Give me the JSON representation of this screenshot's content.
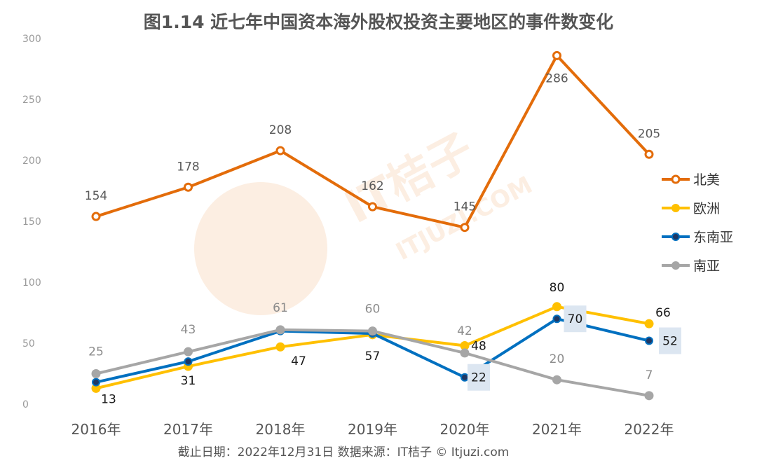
{
  "chart_data": {
    "type": "line",
    "title": "图1.14 近七年中国资本海外股权投资主要地区的事件数变化",
    "categories": [
      "2016年",
      "2017年",
      "2018年",
      "2019年",
      "2020年",
      "2021年",
      "2022年"
    ],
    "ylim": [
      0,
      300
    ],
    "yticks": [
      0,
      50,
      100,
      150,
      200,
      250,
      300
    ],
    "grid": false,
    "legend_position": "right",
    "series": [
      {
        "name": "北美",
        "color": "#E36C0A",
        "values": [
          154,
          178,
          208,
          162,
          145,
          286,
          205
        ],
        "labels_shown": true
      },
      {
        "name": "欧洲",
        "color": "#FFC000",
        "values": [
          13,
          31,
          47,
          57,
          48,
          80,
          66
        ],
        "labels_shown": true
      },
      {
        "name": "东南亚",
        "color": "#0070C0",
        "values": [
          18,
          35,
          60,
          58,
          22,
          70,
          52
        ],
        "labels_shown": [
          false,
          false,
          false,
          false,
          true,
          true,
          true
        ]
      },
      {
        "name": "南亚",
        "color": "#A6A6A6",
        "values": [
          25,
          43,
          61,
          60,
          42,
          20,
          7
        ],
        "labels_shown": true
      }
    ]
  },
  "footer": "截止日期：2022年12月31日    数据来源：IT桔子 © Itjuzi.com",
  "watermark": {
    "brand": "IT桔子",
    "url": "ITJUZI.COM",
    "logo_icon": "orange-slice-icon"
  }
}
